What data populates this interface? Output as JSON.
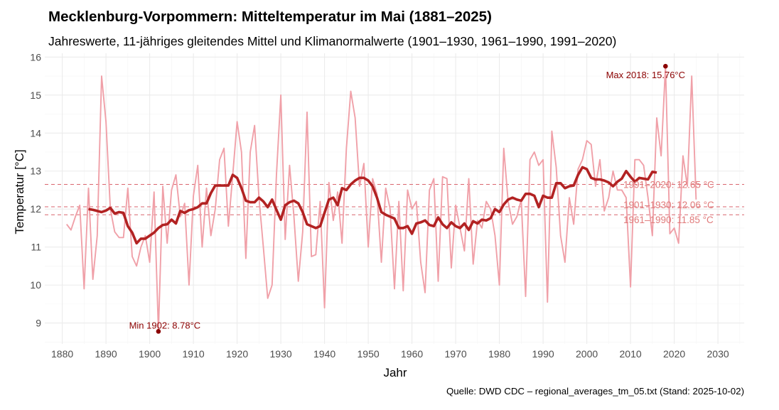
{
  "chart_data": {
    "type": "line",
    "title": "Mecklenburg-Vorpommern: Mitteltemperatur im Mai (1881–2025)",
    "subtitle": "Jahreswerte, 11-jähriges gleitendes Mittel und Klimanormalwerte (1901–1930, 1961–1990, 1991–2020)",
    "caption": "Quelle: DWD CDC – regional_averages_tm_05.txt (Stand: 2025-10-02)",
    "xlabel": "Jahr",
    "ylabel": "Temperatur [°C]",
    "xlim": [
      1876,
      2036
    ],
    "ylim": [
      8.45,
      16.1
    ],
    "x_ticks": [
      1880,
      1890,
      1900,
      1910,
      1920,
      1930,
      1940,
      1950,
      1960,
      1970,
      1980,
      1990,
      2000,
      2010,
      2020,
      2030
    ],
    "y_ticks": [
      9,
      10,
      11,
      12,
      13,
      14,
      15,
      16
    ],
    "grid": true,
    "colors": {
      "annual": "#f0a0a8",
      "moving_mean": "#b22222",
      "normals": "#d9666f",
      "normal_labels": "#e07a7a",
      "extremes": "#8b0000",
      "grid": "#ebebeb"
    },
    "series": [
      {
        "name": "Jahreswerte",
        "start_year": 1881,
        "values": [
          11.6,
          11.45,
          11.8,
          12.1,
          9.9,
          12.55,
          10.15,
          11.3,
          15.5,
          14.3,
          12.0,
          11.4,
          11.25,
          11.25,
          12.55,
          10.75,
          10.5,
          11.0,
          11.3,
          10.6,
          12.45,
          8.78,
          12.6,
          11.1,
          12.5,
          12.9,
          11.8,
          12.15,
          10.0,
          12.35,
          13.15,
          11.0,
          12.55,
          11.3,
          12.0,
          13.3,
          13.6,
          11.55,
          12.9,
          14.3,
          13.5,
          10.7,
          13.5,
          14.2,
          12.3,
          11.0,
          9.65,
          10.0,
          12.9,
          15.0,
          11.2,
          13.15,
          11.8,
          10.1,
          11.4,
          14.55,
          10.75,
          10.8,
          12.2,
          9.4,
          12.7,
          11.7,
          12.45,
          11.1,
          13.6,
          15.1,
          14.4,
          12.6,
          13.2,
          11.0,
          12.8,
          12.4,
          10.6,
          12.55,
          12.0,
          9.9,
          12.2,
          9.85,
          12.5,
          12.0,
          12.2,
          10.6,
          9.8,
          12.5,
          12.8,
          10.1,
          12.85,
          12.8,
          10.45,
          12.1,
          11.5,
          10.9,
          12.8,
          10.55,
          11.7,
          11.5,
          12.2,
          12.0,
          11.3,
          10.0,
          13.6,
          12.2,
          11.6,
          11.8,
          12.25,
          9.7,
          13.3,
          13.5,
          13.15,
          13.3,
          9.55,
          14.05,
          13.1,
          11.3,
          10.6,
          12.3,
          11.6,
          13.05,
          13.3,
          13.8,
          13.7,
          12.6,
          13.3,
          11.95,
          12.3,
          13.0,
          12.5,
          12.5,
          12.3,
          9.95,
          13.3,
          13.3,
          13.15,
          12.3,
          11.3,
          14.4,
          13.4,
          15.76,
          11.35,
          11.5,
          11.1,
          13.4,
          12.6,
          15.5,
          12.25
        ]
      },
      {
        "name": "11-jähriges gleitendes Mittel",
        "start_year": 1886,
        "values": [
          12.0,
          11.98,
          11.95,
          11.92,
          11.96,
          12.03,
          11.88,
          11.92,
          11.9,
          11.55,
          11.38,
          11.1,
          11.22,
          11.22,
          11.3,
          11.38,
          11.5,
          11.58,
          11.6,
          11.72,
          11.62,
          11.95,
          11.9,
          11.97,
          12.0,
          12.05,
          12.15,
          12.15,
          12.42,
          12.62,
          12.62,
          12.62,
          12.62,
          12.9,
          12.82,
          12.55,
          12.22,
          12.18,
          12.18,
          12.3,
          12.2,
          12.05,
          12.25,
          11.98,
          11.72,
          12.1,
          12.18,
          12.22,
          12.15,
          11.92,
          11.6,
          11.55,
          11.5,
          11.55,
          11.9,
          12.25,
          12.3,
          12.1,
          12.55,
          12.5,
          12.65,
          12.75,
          12.82,
          12.82,
          12.75,
          12.6,
          12.3,
          11.92,
          11.85,
          11.8,
          11.75,
          11.5,
          11.5,
          11.55,
          11.35,
          11.62,
          11.65,
          11.7,
          11.58,
          11.55,
          11.78,
          11.6,
          11.5,
          11.65,
          11.55,
          11.5,
          11.62,
          11.45,
          11.68,
          11.62,
          11.72,
          11.7,
          11.76,
          12.0,
          11.92,
          12.12,
          12.25,
          12.3,
          12.25,
          12.22,
          12.4,
          12.4,
          12.35,
          12.05,
          12.35,
          12.3,
          12.3,
          12.68,
          12.68,
          12.55,
          12.6,
          12.62,
          12.9,
          13.1,
          13.05,
          12.82,
          12.78,
          12.78,
          12.75,
          12.7,
          12.6,
          12.72,
          12.8,
          13.0,
          12.85,
          12.72,
          12.82,
          12.8,
          12.78,
          12.98,
          12.96
        ]
      }
    ],
    "reference_lines": [
      {
        "label": "1991–2020: 12.65 °C",
        "value": 12.65
      },
      {
        "label": "1901–1930: 12.06 °C",
        "value": 12.06
      },
      {
        "label": "1961–1990: 11.85 °C",
        "value": 11.85
      }
    ],
    "annotations": [
      {
        "label": "Max 2018: 15.76°C",
        "year": 2018,
        "value": 15.76,
        "kind": "max"
      },
      {
        "label": "Min 1902: 8.78°C",
        "year": 1902,
        "value": 8.78,
        "kind": "min"
      }
    ]
  }
}
